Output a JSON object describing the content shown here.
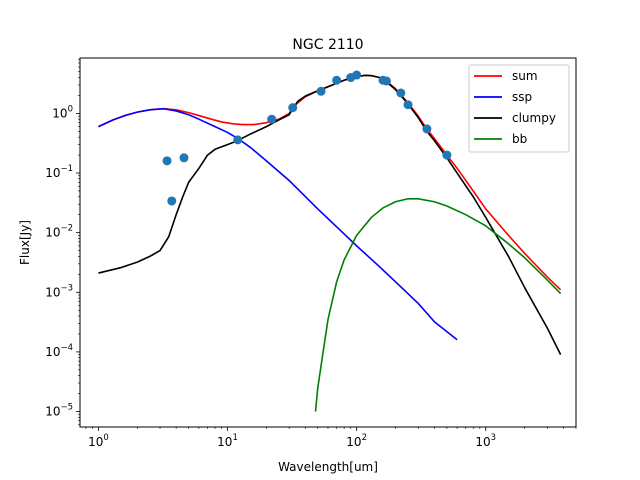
{
  "chart_data": {
    "type": "line",
    "title": "NGC 2110",
    "xlabel": "Wavelength[um]",
    "ylabel": "Flux[Jy]",
    "xscale": "log",
    "yscale": "log",
    "xlim": [
      0.72,
      5000
    ],
    "ylim": [
      5.5e-06,
      8.5
    ],
    "x_ticks": [
      {
        "value": 1,
        "base": "10",
        "exp": "0"
      },
      {
        "value": 10,
        "base": "10",
        "exp": "1"
      },
      {
        "value": 100,
        "base": "10",
        "exp": "2"
      },
      {
        "value": 1000,
        "base": "10",
        "exp": "3"
      }
    ],
    "y_ticks": [
      {
        "value": 1e-05,
        "base": "10",
        "exp": "−5"
      },
      {
        "value": 0.0001,
        "base": "10",
        "exp": "−4"
      },
      {
        "value": 0.001,
        "base": "10",
        "exp": "−3"
      },
      {
        "value": 0.01,
        "base": "10",
        "exp": "−2"
      },
      {
        "value": 0.1,
        "base": "10",
        "exp": "−1"
      },
      {
        "value": 1,
        "base": "10",
        "exp": "0"
      }
    ],
    "legend": {
      "position": "top-right"
    },
    "series": [
      {
        "name": "sum",
        "color": "#ff0000",
        "points": [
          [
            1,
            0.6
          ],
          [
            1.3,
            0.78
          ],
          [
            1.6,
            0.92
          ],
          [
            2,
            1.05
          ],
          [
            2.5,
            1.15
          ],
          [
            3.2,
            1.2
          ],
          [
            4,
            1.15
          ],
          [
            5,
            1.03
          ],
          [
            6,
            0.92
          ],
          [
            7.5,
            0.8
          ],
          [
            9,
            0.72
          ],
          [
            11,
            0.67
          ],
          [
            13,
            0.65
          ],
          [
            16,
            0.65
          ],
          [
            20,
            0.7
          ],
          [
            25,
            0.8
          ],
          [
            30,
            1.0
          ],
          [
            33,
            1.35
          ],
          [
            40,
            1.9
          ],
          [
            50,
            2.4
          ],
          [
            60,
            2.8
          ],
          [
            70,
            3.2
          ],
          [
            80,
            3.6
          ],
          [
            90,
            3.9
          ],
          [
            100,
            4.1
          ],
          [
            115,
            4.35
          ],
          [
            130,
            4.3
          ],
          [
            150,
            4.0
          ],
          [
            170,
            3.5
          ],
          [
            200,
            2.6
          ],
          [
            250,
            1.5
          ],
          [
            300,
            0.9
          ],
          [
            350,
            0.55
          ],
          [
            400,
            0.38
          ],
          [
            500,
            0.2
          ],
          [
            600,
            0.12
          ],
          [
            800,
            0.05
          ],
          [
            1000,
            0.025
          ],
          [
            1500,
            0.009
          ],
          [
            2000,
            0.0045
          ],
          [
            3000,
            0.0018
          ],
          [
            3800,
            0.0011
          ]
        ]
      },
      {
        "name": "ssp",
        "color": "#0000ff",
        "points": [
          [
            1,
            0.6
          ],
          [
            1.3,
            0.78
          ],
          [
            1.6,
            0.92
          ],
          [
            2,
            1.05
          ],
          [
            2.5,
            1.15
          ],
          [
            3.2,
            1.2
          ],
          [
            4,
            1.1
          ],
          [
            5,
            0.95
          ],
          [
            6,
            0.8
          ],
          [
            8,
            0.6
          ],
          [
            10,
            0.48
          ],
          [
            12,
            0.38
          ],
          [
            15,
            0.27
          ],
          [
            20,
            0.16
          ],
          [
            30,
            0.075
          ],
          [
            50,
            0.025
          ],
          [
            80,
            0.0095
          ],
          [
            100,
            0.006
          ],
          [
            150,
            0.0027
          ],
          [
            200,
            0.0015
          ],
          [
            300,
            0.00065
          ],
          [
            400,
            0.00032
          ],
          [
            600,
            0.00016
          ]
        ]
      },
      {
        "name": "clumpy",
        "color": "#000000",
        "points": [
          [
            1,
            0.0021
          ],
          [
            1.5,
            0.0026
          ],
          [
            2,
            0.0032
          ],
          [
            2.5,
            0.004
          ],
          [
            3,
            0.005
          ],
          [
            3.5,
            0.0085
          ],
          [
            4,
            0.02
          ],
          [
            4.5,
            0.04
          ],
          [
            5,
            0.07
          ],
          [
            6,
            0.12
          ],
          [
            7,
            0.2
          ],
          [
            8,
            0.25
          ],
          [
            10,
            0.3
          ],
          [
            12,
            0.35
          ],
          [
            15,
            0.45
          ],
          [
            20,
            0.6
          ],
          [
            25,
            0.78
          ],
          [
            30,
            0.95
          ],
          [
            35,
            1.6
          ],
          [
            40,
            1.95
          ],
          [
            50,
            2.4
          ],
          [
            60,
            2.8
          ],
          [
            70,
            3.2
          ],
          [
            80,
            3.6
          ],
          [
            90,
            3.9
          ],
          [
            100,
            4.1
          ],
          [
            115,
            4.35
          ],
          [
            130,
            4.3
          ],
          [
            150,
            4.0
          ],
          [
            170,
            3.4
          ],
          [
            200,
            2.5
          ],
          [
            250,
            1.45
          ],
          [
            300,
            0.85
          ],
          [
            350,
            0.5
          ],
          [
            400,
            0.35
          ],
          [
            500,
            0.18
          ],
          [
            600,
            0.1
          ],
          [
            800,
            0.04
          ],
          [
            1000,
            0.018
          ],
          [
            1500,
            0.004
          ],
          [
            2000,
            0.0012
          ],
          [
            3000,
            0.00025
          ],
          [
            3800,
            9e-05
          ]
        ]
      },
      {
        "name": "bb",
        "color": "#008000",
        "points": [
          [
            48,
            1e-05
          ],
          [
            50,
            2.5e-05
          ],
          [
            55,
            0.0001
          ],
          [
            60,
            0.00035
          ],
          [
            70,
            0.0015
          ],
          [
            80,
            0.0035
          ],
          [
            100,
            0.009
          ],
          [
            130,
            0.018
          ],
          [
            160,
            0.026
          ],
          [
            200,
            0.033
          ],
          [
            250,
            0.037
          ],
          [
            300,
            0.037
          ],
          [
            400,
            0.033
          ],
          [
            500,
            0.028
          ],
          [
            700,
            0.02
          ],
          [
            1000,
            0.013
          ],
          [
            1500,
            0.0065
          ],
          [
            2000,
            0.0038
          ],
          [
            3000,
            0.0016
          ],
          [
            3800,
            0.00095
          ]
        ]
      }
    ],
    "observed_points": {
      "color": "#1f77b4",
      "points": [
        [
          3.4,
          0.16
        ],
        [
          3.7,
          0.034
        ],
        [
          4.6,
          0.18
        ],
        [
          12,
          0.36
        ],
        [
          22,
          0.8
        ],
        [
          32,
          1.25
        ],
        [
          53,
          2.35
        ],
        [
          70,
          3.6
        ],
        [
          90,
          4.0
        ],
        [
          100,
          4.4
        ],
        [
          160,
          3.6
        ],
        [
          170,
          3.5
        ],
        [
          220,
          2.2
        ],
        [
          250,
          1.4
        ],
        [
          350,
          0.55
        ],
        [
          500,
          0.2
        ]
      ]
    }
  }
}
